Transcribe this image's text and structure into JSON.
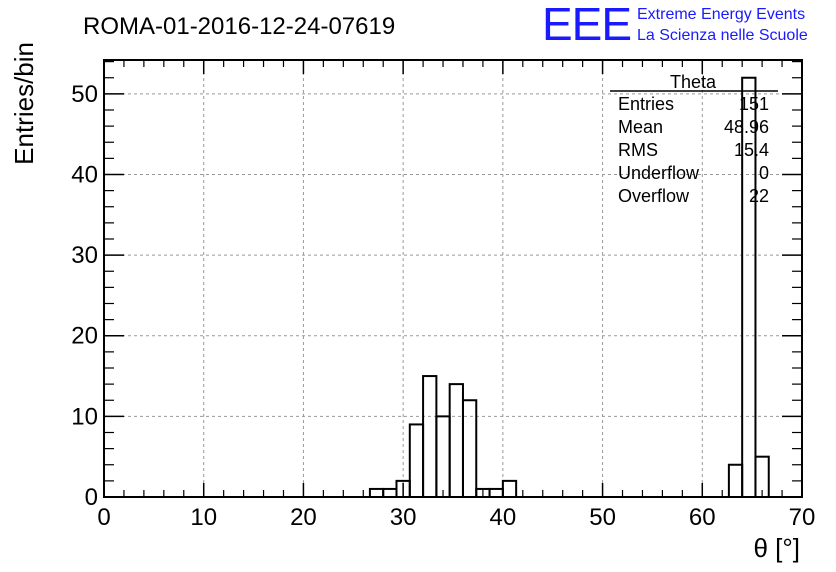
{
  "chart_data": {
    "type": "bar",
    "title": "ROMA-01-2016-12-24-07619",
    "xlabel": "θ [°]",
    "ylabel": "Entries/bin",
    "xlim": [
      0,
      70
    ],
    "ylim": [
      0,
      55
    ],
    "grid": true,
    "x_ticks": [
      "0",
      "10",
      "20",
      "30",
      "40",
      "50",
      "60",
      "70"
    ],
    "y_ticks": [
      "0",
      "10",
      "20",
      "30",
      "40",
      "50"
    ],
    "bin_width": 1.333,
    "bins": [
      {
        "x0": 26.667,
        "value": 1
      },
      {
        "x0": 28.0,
        "value": 1
      },
      {
        "x0": 29.333,
        "value": 2
      },
      {
        "x0": 30.667,
        "value": 9
      },
      {
        "x0": 32.0,
        "value": 15
      },
      {
        "x0": 33.333,
        "value": 10
      },
      {
        "x0": 34.667,
        "value": 14
      },
      {
        "x0": 36.0,
        "value": 12
      },
      {
        "x0": 37.333,
        "value": 1
      },
      {
        "x0": 38.667,
        "value": 1
      },
      {
        "x0": 40.0,
        "value": 2
      },
      {
        "x0": 62.667,
        "value": 4
      },
      {
        "x0": 64.0,
        "value": 52
      },
      {
        "x0": 65.333,
        "value": 5
      }
    ],
    "stats": {
      "name": "Theta",
      "rows": [
        {
          "label": "Entries",
          "value": "151"
        },
        {
          "label": "Mean",
          "value": "48.96"
        },
        {
          "label": "RMS",
          "value": "15.4"
        },
        {
          "label": "Underflow",
          "value": "0"
        },
        {
          "label": "Overflow",
          "value": "22"
        }
      ]
    }
  },
  "logo": {
    "mark": "EEE",
    "line1": "Extreme Energy Events",
    "line2": "La Scienza nelle Scuole"
  },
  "colors": {
    "logo": "#1a1aff",
    "line": "#000000",
    "grid": "#999999"
  }
}
